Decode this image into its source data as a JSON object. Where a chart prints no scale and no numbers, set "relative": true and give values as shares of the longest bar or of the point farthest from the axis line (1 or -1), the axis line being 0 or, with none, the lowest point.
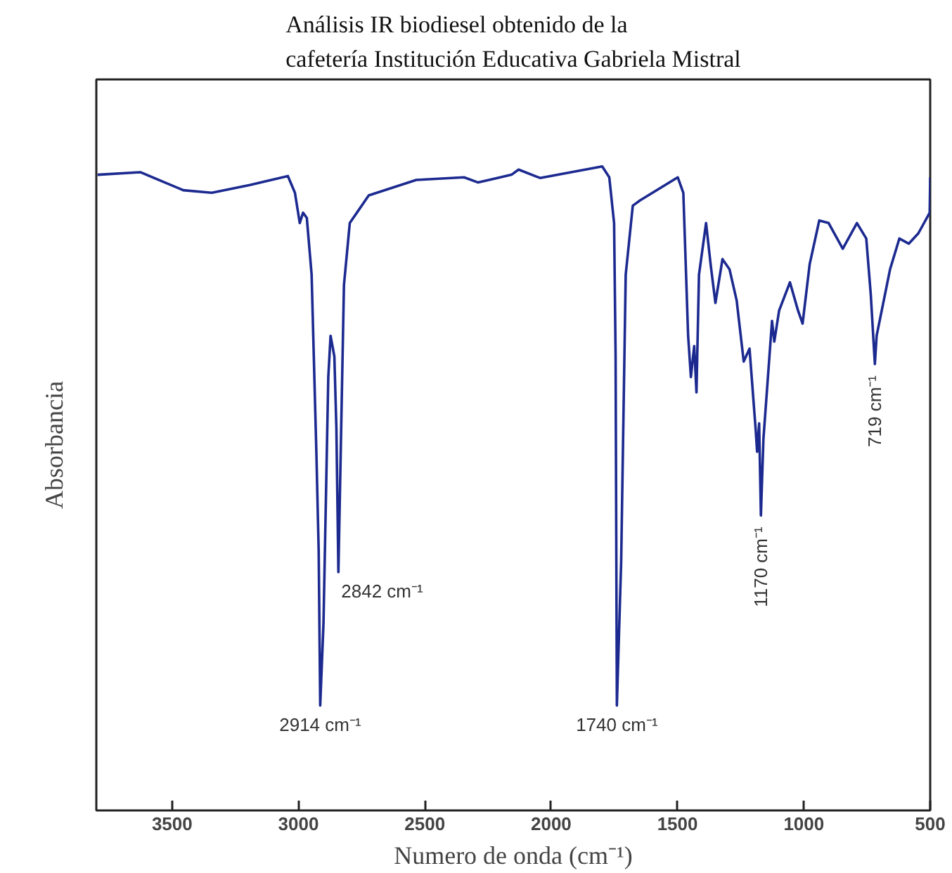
{
  "chart_data": {
    "type": "line",
    "title": "Análisis IR biodiesel obtenido de la\ncafetería Institución Educativa Gabriela Mistral",
    "xlabel": "Numero de onda (cm⁻¹)",
    "ylabel": "Absorbancia",
    "relative": true,
    "grid": false,
    "marker": "none",
    "line_style": "solid",
    "xlim": [
      3800,
      500
    ],
    "xticks": [
      3500,
      3000,
      2500,
      2000,
      1500,
      1000,
      500
    ],
    "series": [
      {
        "color": "#1c2a90",
        "x": [
          3795,
          3626,
          3456,
          3343,
          3193,
          3042,
          3014,
          2995,
          2982,
          2967,
          2948,
          2929,
          2920,
          2914,
          2901,
          2882,
          2873,
          2858,
          2850,
          2842,
          2831,
          2820,
          2797,
          2722,
          2534,
          2345,
          2289,
          2157,
          2129,
          2044,
          1798,
          1770,
          1751,
          1745,
          1740,
          1723,
          1705,
          1677,
          1649,
          1499,
          1477,
          1458,
          1447,
          1434,
          1425,
          1415,
          1387,
          1369,
          1350,
          1322,
          1294,
          1266,
          1238,
          1215,
          1191,
          1185,
          1177,
          1170,
          1160,
          1126,
          1117,
          1098,
          1055,
          1023,
          1005,
          977,
          939,
          902,
          846,
          790,
          753,
          735,
          719,
          712,
          659,
          622,
          585,
          547,
          502,
          500
        ],
        "values": [
          0.987,
          0.991,
          0.963,
          0.959,
          0.971,
          0.985,
          0.959,
          0.912,
          0.928,
          0.92,
          0.832,
          0.553,
          0.402,
          0.163,
          0.291,
          0.673,
          0.737,
          0.705,
          0.594,
          0.37,
          0.593,
          0.816,
          0.912,
          0.955,
          0.979,
          0.983,
          0.975,
          0.987,
          0.995,
          0.982,
          1.0,
          0.983,
          0.912,
          0.705,
          0.163,
          0.386,
          0.832,
          0.939,
          0.947,
          0.983,
          0.959,
          0.737,
          0.673,
          0.721,
          0.649,
          0.832,
          0.912,
          0.848,
          0.788,
          0.856,
          0.84,
          0.792,
          0.697,
          0.717,
          0.593,
          0.557,
          0.601,
          0.458,
          0.577,
          0.76,
          0.728,
          0.776,
          0.82,
          0.776,
          0.756,
          0.848,
          0.916,
          0.912,
          0.872,
          0.912,
          0.888,
          0.8,
          0.693,
          0.737,
          0.84,
          0.888,
          0.88,
          0.896,
          0.928,
          0.983
        ]
      }
    ],
    "annotations": [
      {
        "text": "2914 cm⁻¹",
        "x": 2914,
        "y": 0.163
      },
      {
        "text": "2842 cm⁻¹",
        "x": 2842,
        "y": 0.37
      },
      {
        "text": "1740 cm⁻¹",
        "x": 1740,
        "y": 0.163
      },
      {
        "text": "1170 cm⁻¹",
        "x": 1170,
        "y": 0.458
      },
      {
        "text": "719 cm⁻¹",
        "x": 719,
        "y": 0.693
      }
    ]
  }
}
